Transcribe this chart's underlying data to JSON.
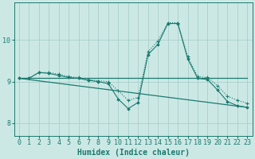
{
  "xlabel": "Humidex (Indice chaleur)",
  "bg_color": "#cce8e5",
  "grid_color": "#aacfcc",
  "line_color": "#1a7a6e",
  "xlim": [
    -0.5,
    23.5
  ],
  "ylim": [
    7.7,
    10.9
  ],
  "xticks": [
    0,
    1,
    2,
    3,
    4,
    5,
    6,
    7,
    8,
    9,
    10,
    11,
    12,
    13,
    14,
    15,
    16,
    17,
    18,
    19,
    20,
    21,
    22,
    23
  ],
  "yticks": [
    8,
    9,
    10
  ],
  "line1_x": [
    0,
    1,
    2,
    3,
    4,
    5,
    6,
    7,
    8,
    9,
    10,
    11,
    12,
    13,
    14,
    15,
    16,
    17,
    18,
    19,
    20,
    21,
    22,
    23
  ],
  "line1_y": [
    9.08,
    9.08,
    9.22,
    9.22,
    9.18,
    9.12,
    9.1,
    9.05,
    9.02,
    9.0,
    8.78,
    8.55,
    8.62,
    9.72,
    9.98,
    10.42,
    10.42,
    9.6,
    9.12,
    9.1,
    8.9,
    8.65,
    8.55,
    8.48
  ],
  "line2_x": [
    0,
    1,
    2,
    3,
    4,
    5,
    6,
    7,
    8,
    9,
    10,
    11,
    12,
    13,
    14,
    15,
    16,
    17,
    18,
    19,
    20,
    21,
    22,
    23
  ],
  "line2_y": [
    9.08,
    9.08,
    9.22,
    9.2,
    9.15,
    9.1,
    9.08,
    9.03,
    9.0,
    8.95,
    8.58,
    8.35,
    8.5,
    9.65,
    9.9,
    10.4,
    10.4,
    9.55,
    9.08,
    9.05,
    8.8,
    8.52,
    8.42,
    8.38
  ],
  "line3_x": [
    0,
    23
  ],
  "line3_y": [
    9.08,
    9.08
  ],
  "line4_x": [
    0,
    23
  ],
  "line4_y": [
    9.08,
    8.38
  ],
  "font_size_label": 7,
  "font_size_tick": 6
}
